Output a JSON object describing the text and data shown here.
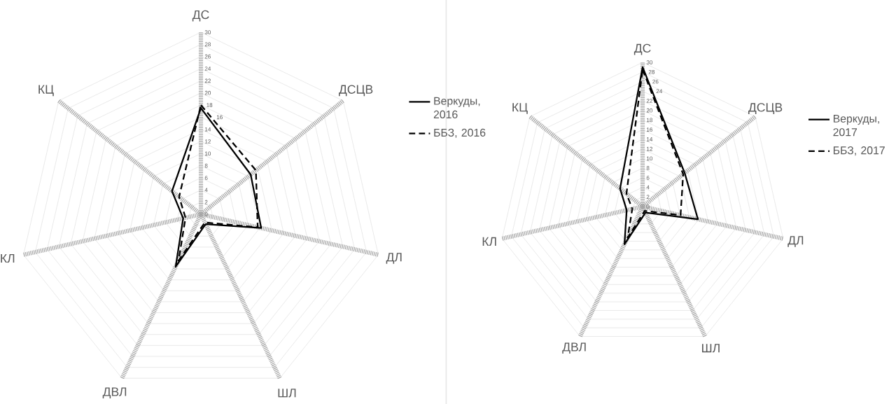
{
  "chart_data": [
    {
      "type": "radar",
      "categories": [
        "ДС",
        "ДСЦВ",
        "ДЛ",
        "ШЛ",
        "ДВЛ",
        "КЛ",
        "КЦ"
      ],
      "ylim": [
        0,
        30
      ],
      "yticks": [
        0,
        2,
        4,
        6,
        8,
        10,
        12,
        14,
        16,
        18,
        20,
        22,
        24,
        26,
        28,
        30
      ],
      "grid": true,
      "legend": "right",
      "series": [
        {
          "name": "Веркуды, 2016",
          "color": "#000000",
          "line_style": "solid",
          "values": [
            17.5,
            10.5,
            10.2,
            1.8,
            9.6,
            3,
            6.1
          ]
        },
        {
          "name": "ББЗ, 2016",
          "color": "#000000",
          "line_style": "dashed",
          "values": [
            18,
            11.6,
            9.6,
            1.5,
            8.5,
            2.6,
            4.6
          ]
        }
      ]
    },
    {
      "type": "radar",
      "categories": [
        "ДС",
        "ДСЦВ",
        "ДЛ",
        "ШЛ",
        "ДВЛ",
        "КЛ",
        "КЦ"
      ],
      "ylim": [
        0,
        30
      ],
      "yticks": [
        0,
        2,
        4,
        6,
        8,
        10,
        12,
        14,
        16,
        18,
        20,
        22,
        24,
        26,
        28,
        30
      ],
      "grid": true,
      "legend": "right",
      "series": [
        {
          "name": "Веркуды, 2017",
          "color": "#000000",
          "line_style": "solid",
          "values": [
            29,
            11.2,
            11.8,
            1.4,
            8.7,
            3.4,
            6
          ]
        },
        {
          "name": "ББЗ, 2017",
          "color": "#000000",
          "line_style": "dashed",
          "values": [
            28.5,
            10.8,
            8.1,
            1,
            7.2,
            2.2,
            4.3
          ]
        }
      ]
    }
  ]
}
